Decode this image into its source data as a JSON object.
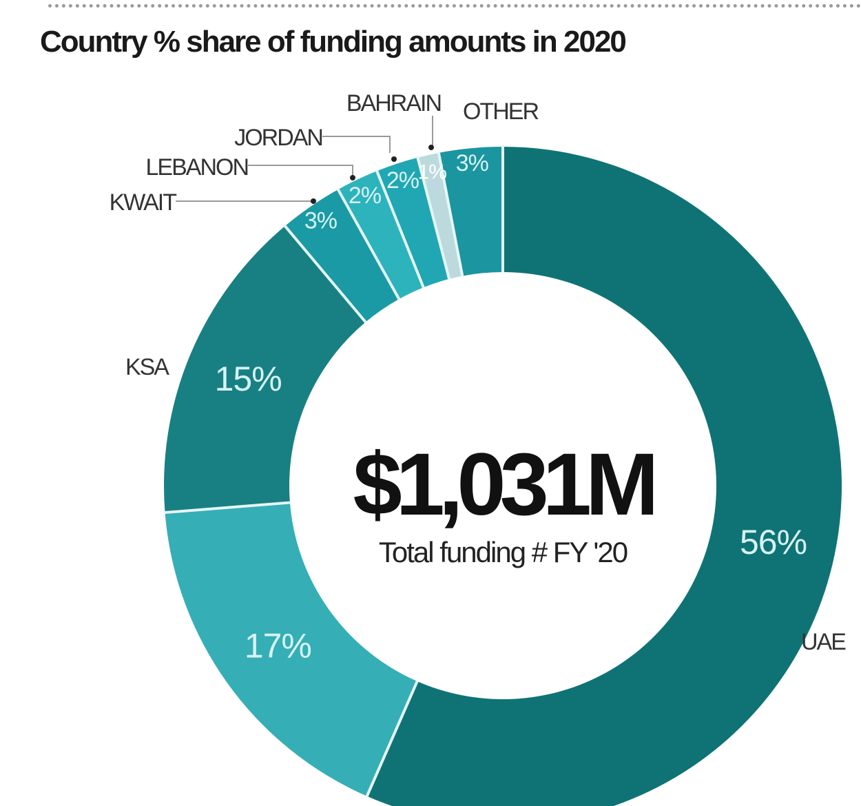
{
  "chart_data": {
    "type": "pie",
    "title": "Country % share of funding amounts in 2020",
    "center_value": "$1,031M",
    "center_label": "Total funding # FY '20",
    "slices": [
      {
        "label": "UAE",
        "value": 56,
        "value_label": "56%",
        "color": "#0f7375"
      },
      {
        "label": "",
        "value": 17,
        "value_label": "17%",
        "color": "#35aeb6"
      },
      {
        "label": "KSA",
        "value": 15,
        "value_label": "15%",
        "color": "#188083"
      },
      {
        "label": "KWAIT",
        "value": 3,
        "value_label": "3%",
        "color": "#1a9aa4"
      },
      {
        "label": "LEBANON",
        "value": 2,
        "value_label": "2%",
        "color": "#2db3bb"
      },
      {
        "label": "JORDAN",
        "value": 2,
        "value_label": "2%",
        "color": "#20a7b3"
      },
      {
        "label": "BAHRAIN",
        "value": 1,
        "value_label": "1%",
        "color": "#bcdadd"
      },
      {
        "label": "OTHER",
        "value": 3,
        "value_label": "3%",
        "color": "#1b95a0"
      }
    ]
  }
}
